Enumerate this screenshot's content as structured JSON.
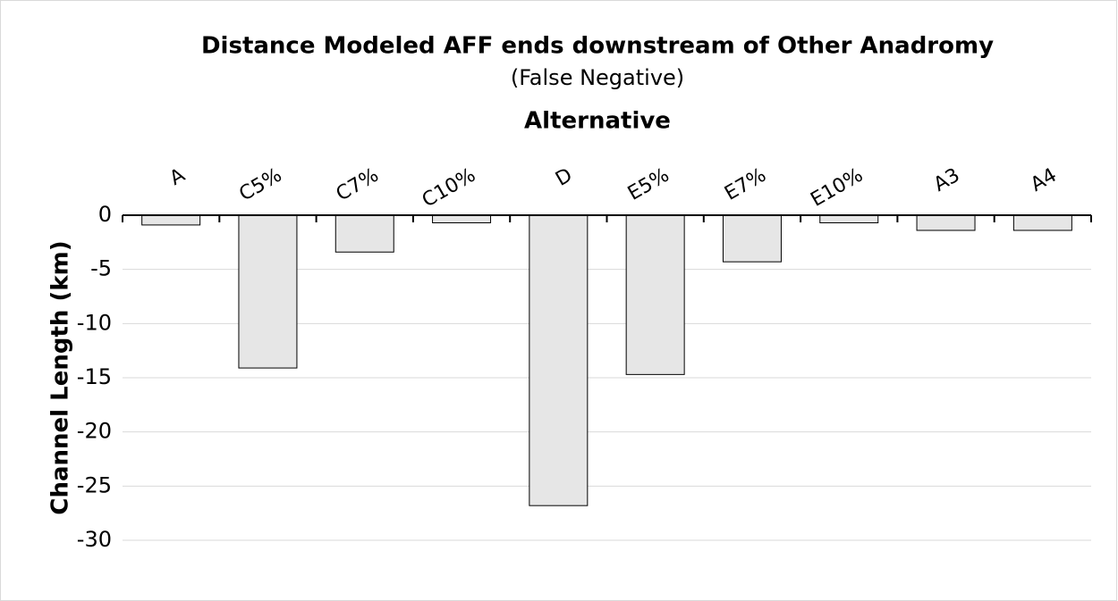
{
  "chart_data": {
    "type": "bar",
    "title": "Distance Modeled AFF ends downstream of Other Anadromy",
    "subtitle": "(False Negative)",
    "x_label": "Alternative",
    "y_label": "Channel Length (km)",
    "categories": [
      "A",
      "C5%",
      "C7%",
      "C10%",
      "D",
      "E5%",
      "E7%",
      "E10%",
      "A3",
      "A4"
    ],
    "values": [
      -0.9,
      -14.1,
      -3.4,
      -0.7,
      -26.8,
      -14.7,
      -4.3,
      -0.7,
      -1.4,
      -1.4
    ],
    "color": "#e6e6e6",
    "ylim": [
      -30,
      0
    ],
    "yticks": [
      0,
      -5,
      -10,
      -15,
      -20,
      -25,
      -30
    ],
    "grid": true
  }
}
